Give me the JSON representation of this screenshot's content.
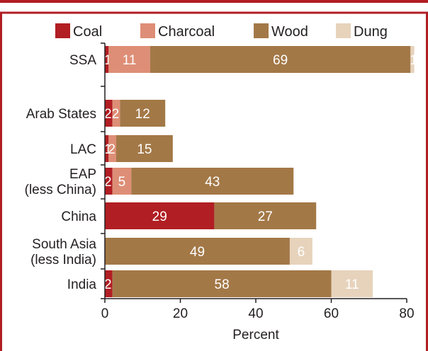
{
  "colors": {
    "border": "#b11e23",
    "coal": "#b11e23",
    "charcoal": "#de8e76",
    "wood": "#a37847",
    "dung": "#e7d3bc",
    "axis": "#231f20",
    "text": "#231f20",
    "label_on_bar": "#ffffff"
  },
  "chart_data": {
    "type": "bar",
    "orientation": "horizontal",
    "stacked": true,
    "categories": [
      "SSA",
      "Arab States",
      "LAC",
      "EAP\n(less China)",
      "China",
      "South Asia\n(less India)",
      "India"
    ],
    "series": [
      {
        "name": "Coal",
        "color_key": "coal",
        "values": [
          1,
          2,
          1,
          2,
          29,
          0,
          2
        ],
        "labels": [
          "1",
          "2",
          "1",
          "2",
          "29",
          "",
          "2"
        ]
      },
      {
        "name": "Charcoal",
        "color_key": "charcoal",
        "values": [
          11,
          2,
          2,
          5,
          0,
          0,
          0
        ],
        "labels": [
          "11",
          "2",
          "2",
          "5",
          "",
          "",
          ""
        ]
      },
      {
        "name": "Wood",
        "color_key": "wood",
        "values": [
          69,
          12,
          15,
          43,
          27,
          49,
          58
        ],
        "labels": [
          "69",
          "12",
          "15",
          "43",
          "27",
          "49",
          "58"
        ]
      },
      {
        "name": "Dung",
        "color_key": "dung",
        "values": [
          1,
          0,
          0,
          0,
          0,
          6,
          11
        ],
        "labels": [
          "1",
          "",
          "",
          "",
          "",
          "6",
          "11"
        ]
      }
    ],
    "xlabel": "Percent",
    "ylabel": "",
    "xlim": [
      0,
      80
    ],
    "xticks": [
      "0",
      "20",
      "40",
      "60",
      "80"
    ],
    "grid": false,
    "legend_position": "top"
  }
}
